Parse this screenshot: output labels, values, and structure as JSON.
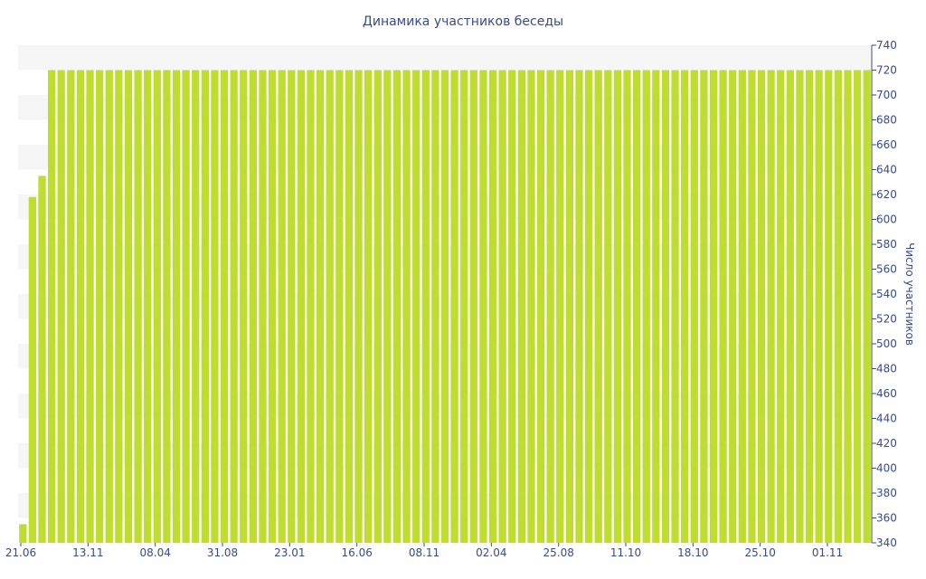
{
  "chart_data": {
    "type": "bar",
    "title": "Динамика участников беседы",
    "ylabel": "Число участников",
    "xlabel": "",
    "ylim": [
      340,
      740
    ],
    "y_ticks": [
      340,
      360,
      380,
      400,
      420,
      440,
      460,
      480,
      500,
      520,
      540,
      560,
      580,
      600,
      620,
      640,
      660,
      680,
      700,
      720,
      740
    ],
    "x_tick_labels": [
      "21.06",
      "13.11",
      "08.04",
      "31.08",
      "23.01",
      "16.06",
      "08.11",
      "02.04",
      "25.08",
      "11.10",
      "18.10",
      "25.10",
      "01.11"
    ],
    "values": [
      355,
      618,
      635,
      720,
      720,
      720,
      720,
      720,
      720,
      720,
      720,
      720,
      720,
      720,
      720,
      720,
      720,
      720,
      720,
      720,
      720,
      720,
      720,
      720,
      720,
      720,
      720,
      720,
      720,
      720,
      720,
      720,
      720,
      720,
      720,
      720,
      720,
      720,
      720,
      720,
      720,
      720,
      720,
      720,
      720,
      720,
      720,
      720,
      720,
      720,
      720,
      720,
      720,
      720,
      720,
      720,
      720,
      720,
      720,
      720,
      720,
      720,
      720,
      720,
      720,
      720,
      720,
      720,
      720,
      720,
      720,
      720,
      720,
      720,
      720,
      720,
      720,
      720,
      720,
      720,
      720,
      720,
      720,
      720,
      720,
      720,
      720,
      720,
      720
    ],
    "bar_color": "#bedd2e",
    "band_color": "#f6f6f6",
    "axis_side": "right",
    "grid": false,
    "legend": "none"
  }
}
